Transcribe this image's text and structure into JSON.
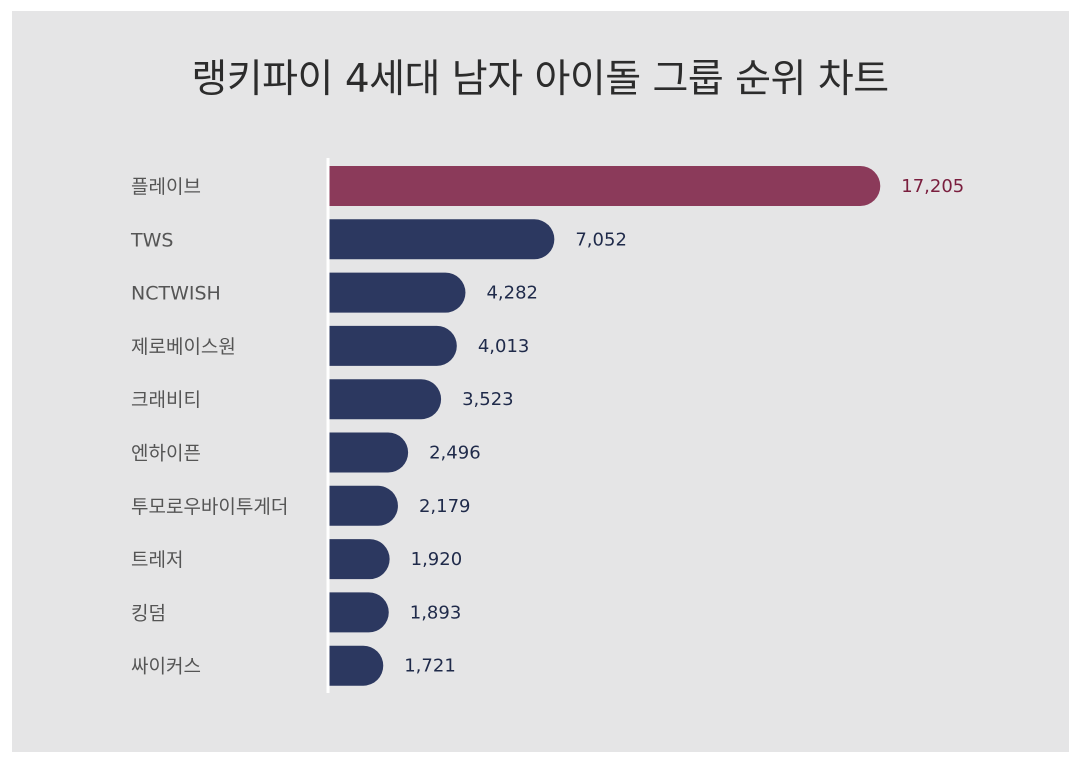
{
  "chart_data": {
    "type": "bar",
    "orientation": "horizontal",
    "title": "랭키파이 4세대 남자 아이돌 그룹 순위 차트",
    "categories": [
      "플레이브",
      "TWS",
      "NCTWISH",
      "제로베이스원",
      "크래비티",
      "엔하이픈",
      "투모로우바이투게더",
      "트레저",
      "킹덤",
      "싸이커스"
    ],
    "values": [
      17205,
      7052,
      4282,
      4013,
      3523,
      2496,
      2179,
      1920,
      1893,
      1721
    ],
    "value_labels": [
      "17,205",
      "7,052",
      "4,282",
      "4,013",
      "3,523",
      "2,496",
      "2,179",
      "1,920",
      "1,893",
      "1,721"
    ],
    "colors": {
      "highlight": "#8b3a5a",
      "highlight_label": "#7a1e3e",
      "default": "#2c3860",
      "default_label": "#1f2a4a",
      "axis": "#ffffff",
      "background": "#e5e5e6"
    },
    "highlight_index": 0,
    "grid": false,
    "legend": "none"
  }
}
